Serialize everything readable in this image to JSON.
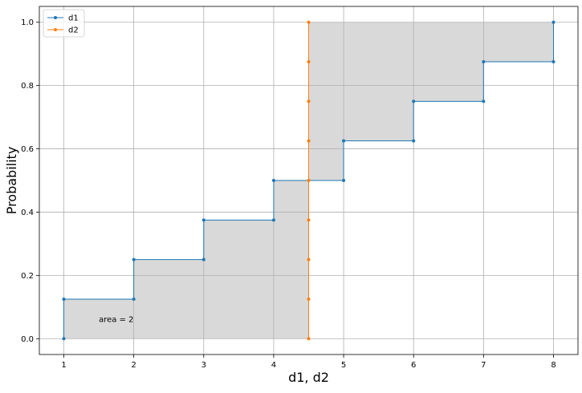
{
  "chart_data": {
    "type": "line",
    "title": "",
    "xlabel": "d1, d2",
    "ylabel": "Probability",
    "xlim": [
      0.65,
      8.35
    ],
    "ylim": [
      -0.05,
      1.05
    ],
    "xticks": [
      "1",
      "2",
      "3",
      "4",
      "5",
      "6",
      "7",
      "8"
    ],
    "yticks": [
      "0.0",
      "0.2",
      "0.4",
      "0.6",
      "0.8",
      "1.0"
    ],
    "grid": true,
    "legend": "top-left",
    "series": [
      {
        "name": "d1",
        "color": "#1f77b4",
        "drawstyle": "steps-post",
        "x": [
          1,
          1,
          2,
          2,
          3,
          3,
          4,
          4,
          5,
          5,
          6,
          6,
          7,
          7,
          8,
          8
        ],
        "y": [
          0.0,
          0.125,
          0.125,
          0.25,
          0.25,
          0.375,
          0.375,
          0.5,
          0.5,
          0.625,
          0.625,
          0.75,
          0.75,
          0.875,
          0.875,
          1.0
        ]
      },
      {
        "name": "d2",
        "color": "#ff7f0e",
        "drawstyle": "vertical",
        "x": [
          4.5,
          4.5,
          4.5,
          4.5,
          4.5,
          4.5,
          4.5,
          4.5,
          4.5
        ],
        "y": [
          0.0,
          0.125,
          0.25,
          0.375,
          0.5,
          0.625,
          0.75,
          0.875,
          1.0
        ]
      }
    ],
    "shaded_area": {
      "color": "#d9d9d9",
      "between": [
        "d1",
        "d2"
      ]
    },
    "annotations": [
      {
        "text": "area = 2",
        "x": 1.5,
        "y": 0.0625
      }
    ]
  }
}
